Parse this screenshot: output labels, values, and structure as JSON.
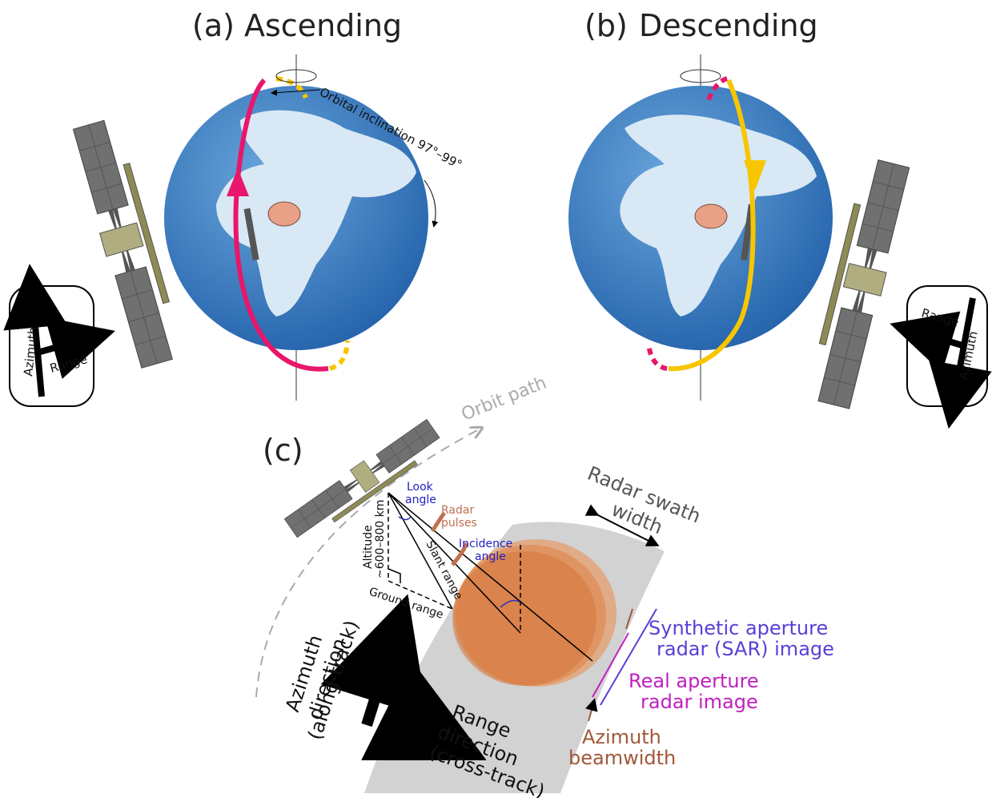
{
  "panels": [
    {
      "label": "(a)",
      "title": "Ascending",
      "inclination": "Orbital inclination 97°–99°",
      "compass": {
        "azimuth": "Azimuth",
        "range": "Range"
      }
    },
    {
      "label": "(b)",
      "title": "Descending",
      "compass": {
        "azimuth": "Azimuth",
        "range": "Range"
      }
    }
  ],
  "panel_c": {
    "label": "(c)",
    "orbit_path": "Orbit path",
    "look_angle": [
      "Look",
      "angle"
    ],
    "radar_pulses": [
      "Radar",
      "pulses"
    ],
    "incidence_angle": [
      "Incidence",
      "angle"
    ],
    "altitude": [
      "Altitude",
      "~600–800 km"
    ],
    "slant_range": "Slant range",
    "ground_range": "Ground range",
    "swath_width": [
      "Radar swath",
      "width"
    ],
    "sar_image": [
      "Synthetic aperture",
      "radar (SAR) image"
    ],
    "real_aperture": [
      "Real aperture",
      "radar image"
    ],
    "azimuth_beamwidth": [
      "Azimuth",
      "beamwidth"
    ],
    "azimuth_direction": [
      "Azimuth",
      "direction",
      "(along-track)"
    ],
    "range_direction": [
      "Range",
      "direction",
      "(cross-track)"
    ]
  }
}
